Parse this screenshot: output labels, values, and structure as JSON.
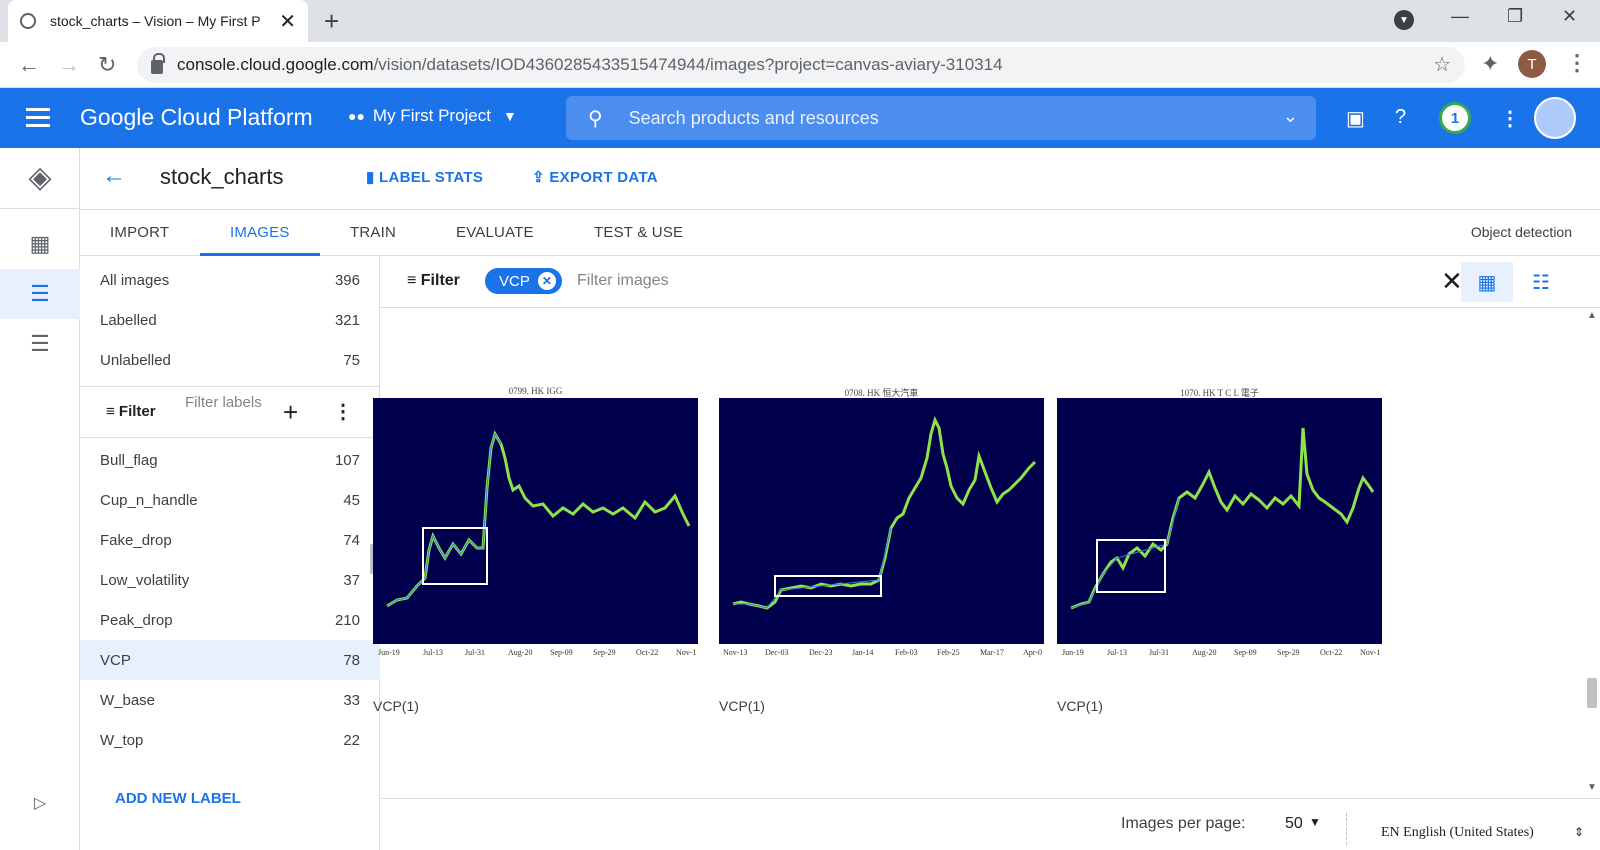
{
  "browser": {
    "tab_title": "stock_charts – Vision – My First P",
    "url_host": "console.cloud.google.com",
    "url_path": "/vision/datasets/IOD4360285433515474944/images?project=canvas-aviary-310314",
    "profile_initial": "T"
  },
  "header": {
    "brand": "Google Cloud Platform",
    "project": "My First Project",
    "search_placeholder": "Search products and resources",
    "notification_count": "1"
  },
  "titlebar": {
    "title": "stock_charts",
    "label_stats": "LABEL STATS",
    "export_data": "EXPORT DATA"
  },
  "tabs": [
    {
      "label": "IMPORT"
    },
    {
      "label": "IMAGES"
    },
    {
      "label": "TRAIN"
    },
    {
      "label": "EVALUATE"
    },
    {
      "label": "TEST & USE"
    }
  ],
  "model_type": "Object detection",
  "sidebar": {
    "summary": [
      {
        "label": "All images",
        "count": "396"
      },
      {
        "label": "Labelled",
        "count": "321"
      },
      {
        "label": "Unlabelled",
        "count": "75"
      }
    ],
    "filter_label": "Filter",
    "filter_placeholder": "Filter labels",
    "labels": [
      {
        "label": "Bull_flag",
        "count": "107"
      },
      {
        "label": "Cup_n_handle",
        "count": "45"
      },
      {
        "label": "Fake_drop",
        "count": "74"
      },
      {
        "label": "Low_volatility",
        "count": "37"
      },
      {
        "label": "Peak_drop",
        "count": "210"
      },
      {
        "label": "VCP",
        "count": "78"
      },
      {
        "label": "W_base",
        "count": "33"
      },
      {
        "label": "W_top",
        "count": "22"
      }
    ],
    "add_label": "ADD NEW LABEL"
  },
  "image_filter": {
    "filter_label": "Filter",
    "chip": "VCP",
    "placeholder": "Filter images"
  },
  "images": [
    {
      "title": "0799. HK IGG",
      "caption": "VCP(1)",
      "xticks": [
        "Jun-19",
        "Jul-13",
        "Jul-31",
        "Aug-20",
        "Sep-09",
        "Sep-29",
        "Oct-22",
        "Nov-1"
      ]
    },
    {
      "title": "0708. HK 恒大汽車",
      "caption": "VCP(1)",
      "xticks": [
        "Nov-13",
        "Dec-03",
        "Dec-23",
        "Jan-14",
        "Feb-03",
        "Feb-25",
        "Mar-17",
        "Apr-0"
      ]
    },
    {
      "title": "1070. HK T C L 電子",
      "caption": "VCP(1)",
      "xticks": [
        "Jun-19",
        "Jul-13",
        "Jul-31",
        "Aug-20",
        "Sep-09",
        "Sep-29",
        "Oct-22",
        "Nov-1"
      ]
    }
  ],
  "footer": {
    "per_page_label": "Images per page:",
    "per_page_value": "50",
    "language": "EN English (United States)"
  }
}
